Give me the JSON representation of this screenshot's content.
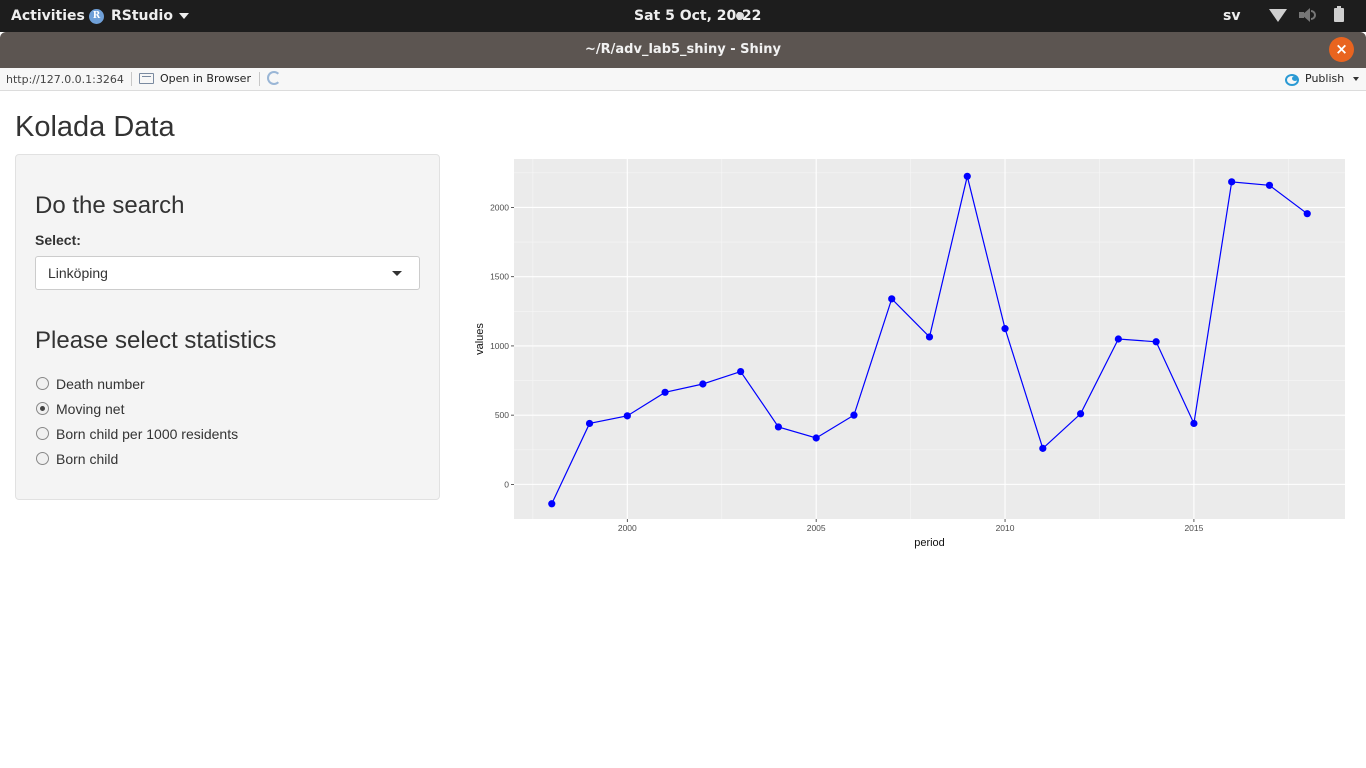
{
  "topbar": {
    "activities": "Activities",
    "app_name": "RStudio",
    "clock": "Sat  5 Oct, 20:22",
    "language": "sv"
  },
  "window": {
    "title": "~/R/adv_lab5_shiny - Shiny",
    "close_label": "×"
  },
  "viewer": {
    "url": "http://127.0.0.1:3264",
    "open_in_browser": "Open in Browser",
    "publish": "Publish"
  },
  "app": {
    "title": "Kolada Data",
    "search_heading": "Do the search",
    "select_label": "Select:",
    "select_value": "Linköping",
    "stats_heading": "Please select statistics",
    "radio_options": [
      {
        "label": "Death number",
        "selected": false
      },
      {
        "label": "Moving net",
        "selected": true
      },
      {
        "label": "Born child per 1000 residents",
        "selected": false
      },
      {
        "label": "Born child",
        "selected": false
      }
    ]
  },
  "chart_data": {
    "type": "line",
    "xlabel": "period",
    "ylabel": "values",
    "x": [
      1998,
      1999,
      2000,
      2001,
      2002,
      2003,
      2004,
      2005,
      2006,
      2007,
      2008,
      2009,
      2010,
      2011,
      2012,
      2013,
      2014,
      2015,
      2016,
      2017,
      2018
    ],
    "series": [
      {
        "values": [
          -140,
          440,
          495,
          665,
          725,
          815,
          415,
          335,
          500,
          1340,
          1065,
          2225,
          1125,
          260,
          510,
          1050,
          1030,
          440,
          2185,
          2160,
          1955
        ],
        "color": "#0000ff"
      }
    ],
    "xticks": [
      2000,
      2005,
      2010,
      2015
    ],
    "yticks": [
      0,
      500,
      1000,
      1500,
      2000
    ],
    "xlim": [
      1997,
      2019
    ],
    "ylim": [
      -250,
      2350
    ],
    "grid": true,
    "background": "#ebebeb"
  }
}
